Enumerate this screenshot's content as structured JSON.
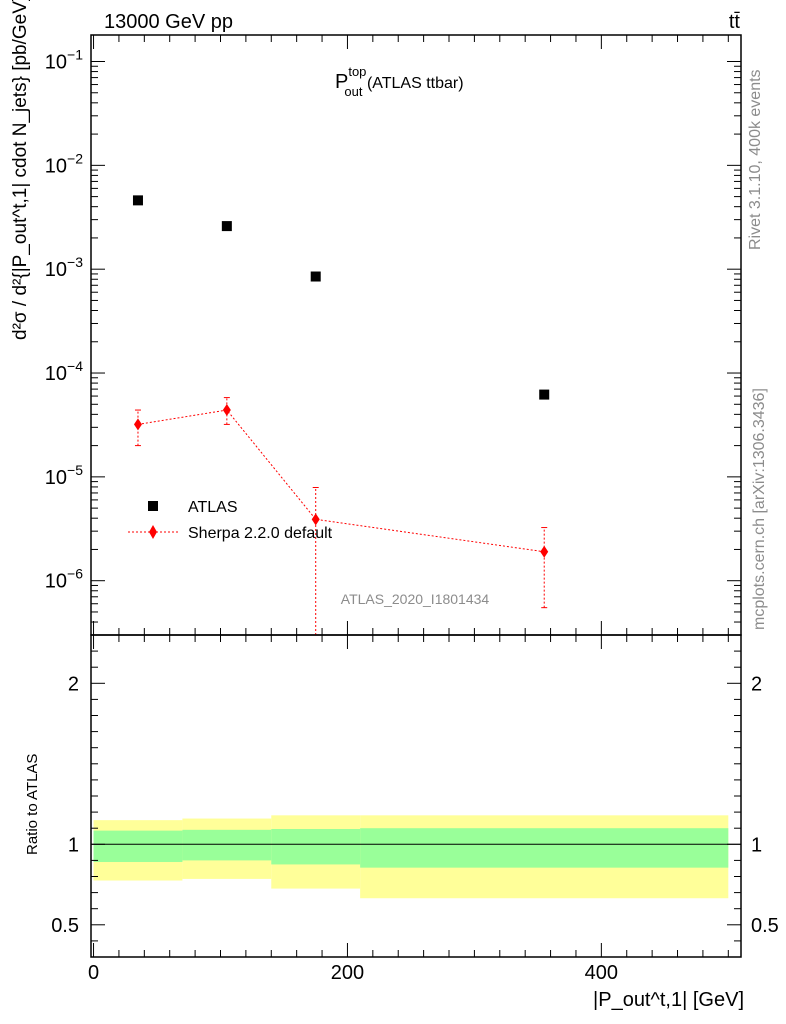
{
  "header": {
    "energy_label": "13000 GeV pp",
    "process_label": "tt̄"
  },
  "plot_title": {
    "main": "P",
    "sup": "top",
    "sub": "out",
    "suffix": " (ATLAS ttbar)"
  },
  "side_labels": {
    "rivet": "Rivet 3.1.10,  400k events",
    "mcplots": "mcplots.cern.ch [arXiv:1306.3436]"
  },
  "analysis_id": "ATLAS_2020_I1801434",
  "y_axis_label": "d²σ / d²{|P_out^t,1| cdot N_jets} [pb/GeV]",
  "ratio_axis_label": "Ratio to ATLAS",
  "x_axis_label": "|P_out^t,1| [GeV]",
  "legend": {
    "data_label": "ATLAS",
    "mc_label": "Sherpa 2.2.0 default"
  },
  "colors": {
    "data": "#000000",
    "mc": "#ff0000",
    "band_inner": "#99ff99",
    "band_outer": "#ffff99",
    "side_text": "#8c8c8c"
  },
  "chart_data": [
    {
      "type": "scatter",
      "panel": "main",
      "yscale": "log",
      "ylim": [
        3e-07,
        0.18
      ],
      "xlim": [
        -2,
        510
      ],
      "y_ticks": [
        "10^-6",
        "10^-5",
        "10^-4",
        "10^-3",
        "10^-2",
        "10^-1"
      ],
      "series": [
        {
          "name": "ATLAS",
          "x": [
            35,
            105,
            175,
            355
          ],
          "y": [
            0.0046,
            0.0026,
            0.00085,
            6.2e-05
          ]
        },
        {
          "name": "Sherpa 2.2.0 default",
          "x": [
            35,
            105,
            175,
            355
          ],
          "y": [
            3.2e-05,
            4.4e-05,
            3.9e-06,
            1.9e-06
          ],
          "err_low": [
            1.2e-05,
            1.2e-05,
            3.7e-06,
            1.35e-06
          ],
          "err_high": [
            1.2e-05,
            1.4e-05,
            4e-06,
            1.35e-06
          ]
        }
      ]
    },
    {
      "type": "area",
      "panel": "ratio",
      "ylim": [
        0.3,
        2.3
      ],
      "y_ticks": [
        "0.5",
        "1",
        "2"
      ],
      "x_ticks": [
        "0",
        "200",
        "400"
      ],
      "bin_edges": [
        0,
        70,
        140,
        210,
        500
      ],
      "inner_band": [
        [
          0.89,
          1.085
        ],
        [
          0.9,
          1.09
        ],
        [
          0.875,
          1.095
        ],
        [
          0.855,
          1.1
        ]
      ],
      "outer_band": [
        [
          0.775,
          1.15
        ],
        [
          0.785,
          1.16
        ],
        [
          0.725,
          1.18
        ],
        [
          0.665,
          1.18
        ]
      ],
      "reference_line": 1
    }
  ]
}
